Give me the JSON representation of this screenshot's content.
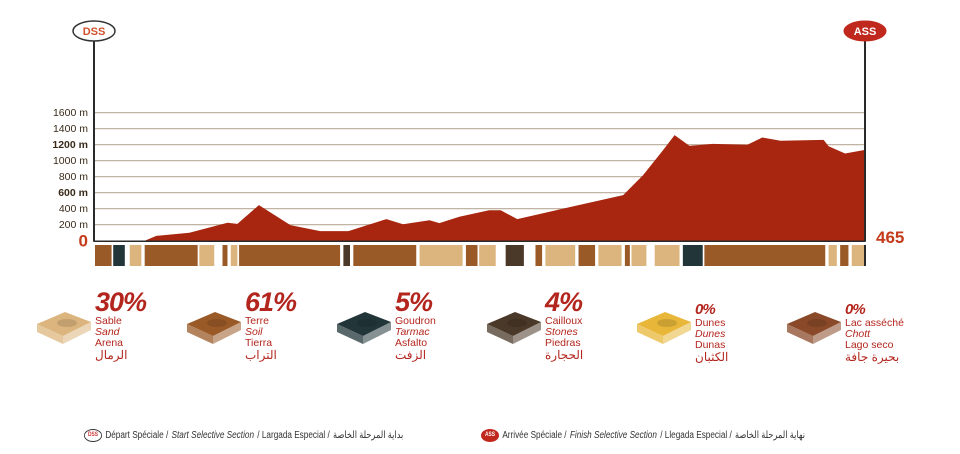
{
  "chart_data": {
    "type": "area",
    "title": "",
    "xlabel": "",
    "ylabel": "",
    "xlim": [
      0,
      465
    ],
    "ylim": [
      0,
      1600
    ],
    "y_ticks": [
      {
        "value": 0,
        "label": "0"
      },
      {
        "value": 200,
        "label": "200 m"
      },
      {
        "value": 400,
        "label": "400 m"
      },
      {
        "value": 600,
        "label": "600 m"
      },
      {
        "value": 800,
        "label": "800 m"
      },
      {
        "value": 1000,
        "label": "1000 m"
      },
      {
        "value": 1200,
        "label": "1200 m"
      },
      {
        "value": 1400,
        "label": "1400 m"
      },
      {
        "value": 1600,
        "label": "1600 m"
      }
    ],
    "end_distance_label": "465",
    "grid": true,
    "fill_color": "#a8260f",
    "profile": [
      [
        0,
        0
      ],
      [
        30,
        0
      ],
      [
        37,
        60
      ],
      [
        57,
        100
      ],
      [
        80,
        225
      ],
      [
        86,
        210
      ],
      [
        99,
        445
      ],
      [
        118,
        195
      ],
      [
        136,
        120
      ],
      [
        153,
        120
      ],
      [
        176,
        270
      ],
      [
        186,
        205
      ],
      [
        202,
        255
      ],
      [
        208,
        220
      ],
      [
        220,
        300
      ],
      [
        238,
        380
      ],
      [
        245,
        380
      ],
      [
        255,
        270
      ],
      [
        289,
        430
      ],
      [
        319,
        570
      ],
      [
        331,
        820
      ],
      [
        343,
        1130
      ],
      [
        350,
        1320
      ],
      [
        359,
        1185
      ],
      [
        373,
        1210
      ],
      [
        394,
        1200
      ],
      [
        403,
        1290
      ],
      [
        414,
        1250
      ],
      [
        440,
        1260
      ],
      [
        443,
        1180
      ],
      [
        453,
        1090
      ],
      [
        465,
        1135
      ]
    ],
    "start_marker": "DSS",
    "finish_marker": "ASS",
    "surface_strip": [
      {
        "from": 0,
        "to": 10,
        "type": "soil"
      },
      {
        "from": 11,
        "to": 18,
        "type": "tarmac"
      },
      {
        "from": 21,
        "to": 28,
        "type": "sand"
      },
      {
        "from": 30,
        "to": 62,
        "type": "soil"
      },
      {
        "from": 63,
        "to": 72,
        "type": "sand"
      },
      {
        "from": 77,
        "to": 80,
        "type": "soil"
      },
      {
        "from": 82,
        "to": 86,
        "type": "sand"
      },
      {
        "from": 87,
        "to": 148,
        "type": "soil"
      },
      {
        "from": 150,
        "to": 154,
        "type": "stones"
      },
      {
        "from": 156,
        "to": 194,
        "type": "soil"
      },
      {
        "from": 196,
        "to": 222,
        "type": "sand"
      },
      {
        "from": 224,
        "to": 231,
        "type": "soil"
      },
      {
        "from": 232,
        "to": 242,
        "type": "sand"
      },
      {
        "from": 248,
        "to": 259,
        "type": "stones"
      },
      {
        "from": 266,
        "to": 270,
        "type": "soil"
      },
      {
        "from": 272,
        "to": 290,
        "type": "sand"
      },
      {
        "from": 292,
        "to": 302,
        "type": "soil"
      },
      {
        "from": 304,
        "to": 318,
        "type": "sand"
      },
      {
        "from": 320,
        "to": 323,
        "type": "soil"
      },
      {
        "from": 324,
        "to": 333,
        "type": "sand"
      },
      {
        "from": 338,
        "to": 353,
        "type": "sand"
      },
      {
        "from": 355,
        "to": 367,
        "type": "tarmac"
      },
      {
        "from": 368,
        "to": 441,
        "type": "soil"
      },
      {
        "from": 443,
        "to": 448,
        "type": "sand"
      },
      {
        "from": 450,
        "to": 455,
        "type": "soil"
      },
      {
        "from": 457,
        "to": 465,
        "type": "sand"
      }
    ],
    "surface_colors": {
      "sand": "#dcb57e",
      "soil": "#9a5a28",
      "tarmac": "#22363a",
      "stones": "#4a3828",
      "dunes": "#e8b73a",
      "dry_lake": "#8a4a2a"
    }
  },
  "legend": [
    {
      "key": "sand",
      "percent": "30%",
      "fr": "Sable",
      "en": "Sand",
      "es": "Arena",
      "ar": "الرمال"
    },
    {
      "key": "soil",
      "percent": "61%",
      "fr": "Terre",
      "en": "Soil",
      "es": "Tierra",
      "ar": "التراب"
    },
    {
      "key": "tarmac",
      "percent": "5%",
      "fr": "Goudron",
      "en": "Tarmac",
      "es": "Asfalto",
      "ar": "الزفت"
    },
    {
      "key": "stones",
      "percent": "4%",
      "fr": "Cailloux",
      "en": "Stones",
      "es": "Piedras",
      "ar": "الحجارة"
    },
    {
      "key": "dunes",
      "percent": "0%",
      "fr": "Dunes",
      "en": "Dunes",
      "es": "Dunas",
      "ar": "الكثبان"
    },
    {
      "key": "dry_lake",
      "percent": "0%",
      "fr": "Lac asséché",
      "en": "Chott",
      "es": "Lago seco",
      "ar": "بحيرة جافة"
    }
  ],
  "footer": {
    "start": {
      "badge": "DSS",
      "fr": "Départ Spéciale /",
      "en": "Start Selective Section",
      "es": "/ Largada Especial /",
      "ar": "بداية المرحلة الخاصة"
    },
    "finish": {
      "badge": "ASS",
      "fr": "Arrivée Spéciale /",
      "en": "Finish Selective Section",
      "es": "/ Llegada Especial /",
      "ar": "نهاية المرحلة الخاصة"
    }
  }
}
